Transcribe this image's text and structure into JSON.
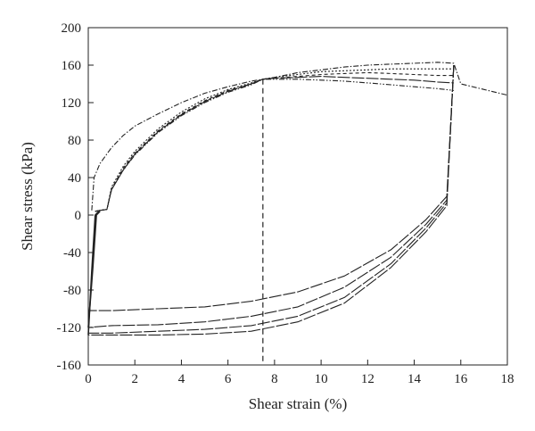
{
  "chart_data": {
    "type": "line",
    "title": "",
    "xlabel": "Shear strain (%)",
    "ylabel": "Shear stress (kPa)",
    "xlim": [
      0,
      18
    ],
    "ylim": [
      -160,
      200
    ],
    "xticks": [
      0,
      2,
      4,
      6,
      8,
      10,
      12,
      14,
      16,
      18
    ],
    "yticks": [
      -160,
      -120,
      -80,
      -40,
      0,
      40,
      80,
      120,
      160,
      200
    ],
    "grid": false,
    "legend": "none",
    "reference_line": {
      "x": 7.5,
      "style": "dashed"
    },
    "series": [
      {
        "style": "dash-dot",
        "points": [
          [
            0.15,
            5
          ],
          [
            0.25,
            40
          ],
          [
            0.5,
            55
          ],
          [
            1,
            72
          ],
          [
            1.5,
            85
          ],
          [
            2,
            95
          ],
          [
            3,
            108
          ],
          [
            4,
            120
          ],
          [
            5,
            130
          ],
          [
            6,
            137
          ],
          [
            7,
            143
          ],
          [
            7.5,
            145
          ],
          [
            8,
            147
          ],
          [
            9,
            152
          ],
          [
            10,
            155
          ],
          [
            11,
            158
          ],
          [
            12,
            160
          ],
          [
            13,
            161
          ],
          [
            14,
            162
          ],
          [
            15,
            163
          ],
          [
            15.7,
            162
          ],
          [
            16,
            140
          ],
          [
            17,
            134
          ],
          [
            18,
            128
          ]
        ]
      },
      {
        "style": "dotted",
        "points": [
          [
            0.3,
            4
          ],
          [
            0.5,
            5
          ],
          [
            0.8,
            6
          ],
          [
            1,
            30
          ],
          [
            1.5,
            52
          ],
          [
            2,
            68
          ],
          [
            3,
            92
          ],
          [
            4,
            110
          ],
          [
            5,
            124
          ],
          [
            6,
            134
          ],
          [
            7,
            141
          ],
          [
            7.5,
            145
          ],
          [
            8,
            147
          ],
          [
            9,
            150
          ],
          [
            10,
            153
          ],
          [
            11,
            154
          ],
          [
            12,
            155
          ],
          [
            13,
            156
          ],
          [
            14,
            156
          ],
          [
            15,
            156
          ],
          [
            15.7,
            156
          ]
        ]
      },
      {
        "style": "dashed",
        "points": [
          [
            0.3,
            4
          ],
          [
            0.5,
            5
          ],
          [
            0.8,
            6
          ],
          [
            1,
            28
          ],
          [
            1.5,
            50
          ],
          [
            2,
            66
          ],
          [
            3,
            90
          ],
          [
            4,
            108
          ],
          [
            5,
            122
          ],
          [
            6,
            133
          ],
          [
            7,
            140
          ],
          [
            7.5,
            145
          ],
          [
            8,
            146
          ],
          [
            9,
            148
          ],
          [
            10,
            150
          ],
          [
            11,
            151
          ],
          [
            12,
            152
          ],
          [
            13,
            151
          ],
          [
            14,
            150
          ],
          [
            15,
            149
          ],
          [
            15.7,
            149
          ]
        ]
      },
      {
        "style": "long-dash",
        "points": [
          [
            0.3,
            4
          ],
          [
            0.5,
            5
          ],
          [
            0.8,
            6
          ],
          [
            1,
            27
          ],
          [
            1.5,
            48
          ],
          [
            2,
            65
          ],
          [
            3,
            89
          ],
          [
            4,
            107
          ],
          [
            5,
            121
          ],
          [
            6,
            132
          ],
          [
            7,
            140
          ],
          [
            7.5,
            145
          ],
          [
            8,
            146
          ],
          [
            9,
            147
          ],
          [
            10,
            148
          ],
          [
            11,
            147
          ],
          [
            12,
            146
          ],
          [
            13,
            145
          ],
          [
            14,
            144
          ],
          [
            15,
            142
          ],
          [
            15.7,
            141
          ]
        ]
      },
      {
        "style": "dash-dot-dot",
        "points": [
          [
            0.3,
            4
          ],
          [
            0.5,
            5
          ],
          [
            0.8,
            6
          ],
          [
            1,
            27
          ],
          [
            1.5,
            48
          ],
          [
            2,
            64
          ],
          [
            3,
            88
          ],
          [
            4,
            106
          ],
          [
            5,
            120
          ],
          [
            6,
            131
          ],
          [
            7,
            139
          ],
          [
            7.5,
            145
          ],
          [
            8,
            145
          ],
          [
            9,
            145
          ],
          [
            10,
            144
          ],
          [
            11,
            143
          ],
          [
            12,
            141
          ],
          [
            13,
            139
          ],
          [
            14,
            137
          ],
          [
            15,
            135
          ],
          [
            15.7,
            133
          ]
        ]
      },
      {
        "style": "long-dash",
        "points": [
          [
            15.7,
            160
          ],
          [
            15.4,
            20
          ],
          [
            14.5,
            -5
          ],
          [
            13,
            -37
          ],
          [
            11,
            -65
          ],
          [
            9,
            -82
          ],
          [
            7,
            -92
          ],
          [
            5,
            -98
          ],
          [
            3,
            -100
          ],
          [
            1,
            -102
          ],
          [
            0,
            -102
          ]
        ]
      },
      {
        "style": "long-dash",
        "points": [
          [
            15.7,
            160
          ],
          [
            15.4,
            16
          ],
          [
            14.5,
            -10
          ],
          [
            13,
            -45
          ],
          [
            11,
            -77
          ],
          [
            9,
            -98
          ],
          [
            7,
            -108
          ],
          [
            5,
            -114
          ],
          [
            3,
            -117
          ],
          [
            1,
            -118
          ],
          [
            0,
            -120
          ]
        ]
      },
      {
        "style": "long-dash",
        "points": [
          [
            15.7,
            160
          ],
          [
            15.4,
            13
          ],
          [
            14.5,
            -14
          ],
          [
            13,
            -52
          ],
          [
            11,
            -88
          ],
          [
            9,
            -108
          ],
          [
            7,
            -118
          ],
          [
            5,
            -122
          ],
          [
            3,
            -124
          ],
          [
            1,
            -126
          ],
          [
            0,
            -126
          ]
        ]
      },
      {
        "style": "long-dash",
        "points": [
          [
            15.7,
            160
          ],
          [
            15.4,
            10
          ],
          [
            14.5,
            -18
          ],
          [
            13,
            -56
          ],
          [
            11,
            -94
          ],
          [
            9,
            -114
          ],
          [
            7,
            -124
          ],
          [
            5,
            -127
          ],
          [
            3,
            -128
          ],
          [
            1,
            -128
          ],
          [
            0,
            -128
          ]
        ]
      },
      {
        "style": "solid",
        "points": [
          [
            0,
            -128
          ],
          [
            0.15,
            -60
          ],
          [
            0.3,
            0
          ],
          [
            0.45,
            4
          ]
        ]
      },
      {
        "style": "solid",
        "points": [
          [
            0,
            -120
          ],
          [
            0.2,
            -55
          ],
          [
            0.35,
            0
          ],
          [
            0.5,
            4
          ]
        ]
      }
    ]
  }
}
